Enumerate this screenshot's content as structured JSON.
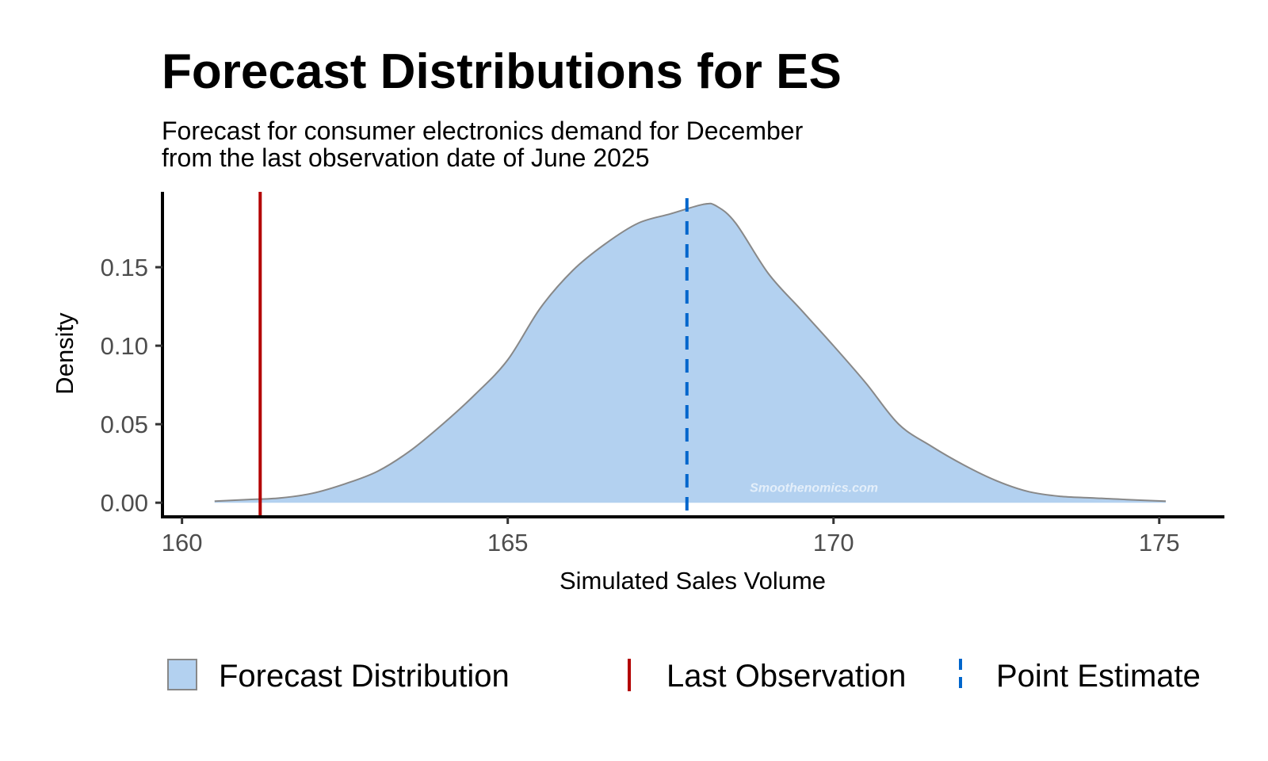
{
  "chart_data": {
    "type": "area",
    "title": "Forecast Distributions for ES",
    "subtitle": [
      "Forecast for consumer electronics demand for December",
      "from the last observation date of June 2025"
    ],
    "xlabel": "Simulated Sales Volume",
    "ylabel": "Density",
    "xlim": [
      159.7,
      176.0
    ],
    "ylim": [
      -0.009,
      0.198
    ],
    "x_ticks": [
      160,
      165,
      170,
      175
    ],
    "x_tick_labels": [
      "160",
      "165",
      "170",
      "175"
    ],
    "y_ticks": [
      0.0,
      0.05,
      0.1,
      0.15
    ],
    "y_tick_labels": [
      "0.00",
      "0.05",
      "0.10",
      "0.15"
    ],
    "grid": false,
    "legend_position": "bottom",
    "series": [
      {
        "name": "Forecast Distribution",
        "kind": "density",
        "color": "#b3d1f0",
        "stroke": "#888888",
        "x": [
          160.5,
          161.0,
          161.5,
          162.0,
          162.5,
          163.0,
          163.5,
          164.0,
          164.5,
          165.0,
          165.5,
          166.0,
          166.5,
          167.0,
          167.5,
          168.0,
          168.2,
          168.5,
          169.0,
          169.5,
          170.0,
          170.5,
          171.0,
          171.5,
          172.0,
          172.5,
          173.0,
          173.5,
          174.0,
          174.5,
          175.1
        ],
        "y": [
          0.001,
          0.002,
          0.003,
          0.006,
          0.012,
          0.02,
          0.033,
          0.05,
          0.069,
          0.091,
          0.124,
          0.148,
          0.165,
          0.178,
          0.184,
          0.19,
          0.189,
          0.178,
          0.146,
          0.123,
          0.1,
          0.076,
          0.05,
          0.036,
          0.024,
          0.014,
          0.007,
          0.004,
          0.003,
          0.002,
          0.001
        ]
      },
      {
        "name": "Last Observation",
        "kind": "vline",
        "x": 161.2,
        "color": "#b30000",
        "dash": "solid"
      },
      {
        "name": "Point Estimate",
        "kind": "vline",
        "x": 167.75,
        "color": "#0066cc",
        "dash": "dashed"
      }
    ],
    "watermark": "Smoothenomics.com"
  }
}
